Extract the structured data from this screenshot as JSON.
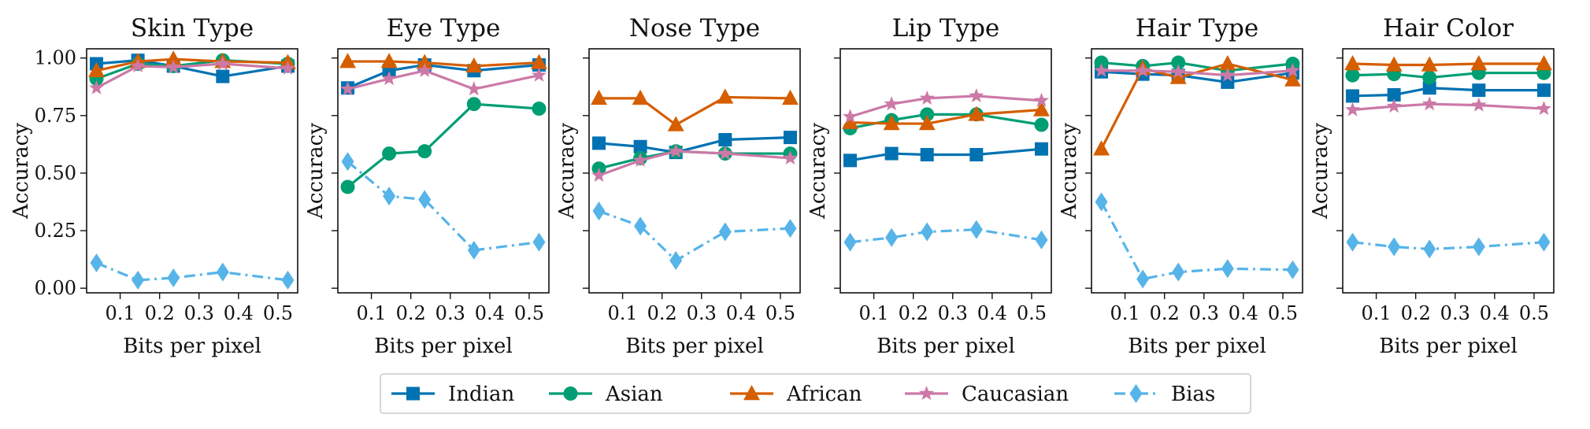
{
  "chart_data": {
    "type": "line",
    "legend": {
      "placement": "bottom-center"
    },
    "series_styles": [
      {
        "name": "Indian",
        "color": "#0072B2",
        "marker": "square",
        "dash": "solid"
      },
      {
        "name": "Asian",
        "color": "#009E73",
        "marker": "circle",
        "dash": "solid"
      },
      {
        "name": "African",
        "color": "#D55E00",
        "marker": "triangle",
        "dash": "solid"
      },
      {
        "name": "Caucasian",
        "color": "#CC79A7",
        "marker": "star",
        "dash": "solid"
      },
      {
        "name": "Bias",
        "color": "#56B4E9",
        "marker": "diamond",
        "dash": "dashdot"
      }
    ],
    "x": [
      0.04,
      0.145,
      0.235,
      0.36,
      0.525
    ],
    "xticks": [
      "0.1",
      "0.2",
      "0.3",
      "0.4",
      "0.5"
    ],
    "xtick_values": [
      0.1,
      0.2,
      0.3,
      0.4,
      0.5
    ],
    "yticks": [
      "0.00",
      "0.25",
      "0.50",
      "0.75",
      "1.00"
    ],
    "ytick_values": [
      0,
      0.25,
      0.5,
      0.75,
      1.0
    ],
    "xlim": [
      0.015,
      0.55
    ],
    "ylim": [
      -0.02,
      1.04
    ],
    "xlabel": "Bits per pixel",
    "ylabel": "Accuracy",
    "panels": [
      {
        "title": "Skin Type",
        "series": [
          {
            "name": "Indian",
            "values": [
              0.975,
              0.99,
              0.965,
              0.92,
              0.965
            ]
          },
          {
            "name": "Asian",
            "values": [
              0.91,
              0.975,
              0.965,
              0.99,
              0.975
            ]
          },
          {
            "name": "African",
            "values": [
              0.945,
              0.985,
              0.995,
              0.985,
              0.98
            ]
          },
          {
            "name": "Caucasian",
            "values": [
              0.87,
              0.965,
              0.96,
              0.975,
              0.955
            ]
          },
          {
            "name": "Bias",
            "values": [
              0.11,
              0.035,
              0.045,
              0.07,
              0.035
            ]
          }
        ]
      },
      {
        "title": "Eye Type",
        "series": [
          {
            "name": "Indian",
            "values": [
              0.87,
              0.945,
              0.97,
              0.945,
              0.97
            ]
          },
          {
            "name": "Asian",
            "values": [
              0.44,
              0.585,
              0.595,
              0.8,
              0.78
            ]
          },
          {
            "name": "African",
            "values": [
              0.985,
              0.985,
              0.98,
              0.965,
              0.98
            ]
          },
          {
            "name": "Caucasian",
            "values": [
              0.865,
              0.91,
              0.945,
              0.865,
              0.925
            ]
          },
          {
            "name": "Bias",
            "values": [
              0.55,
              0.4,
              0.385,
              0.165,
              0.2
            ]
          }
        ]
      },
      {
        "title": "Nose Type",
        "series": [
          {
            "name": "Indian",
            "values": [
              0.63,
              0.615,
              0.59,
              0.645,
              0.655
            ]
          },
          {
            "name": "Asian",
            "values": [
              0.52,
              0.565,
              0.595,
              0.585,
              0.585
            ]
          },
          {
            "name": "African",
            "values": [
              0.825,
              0.825,
              0.71,
              0.83,
              0.825
            ]
          },
          {
            "name": "Caucasian",
            "values": [
              0.49,
              0.555,
              0.595,
              0.585,
              0.565
            ]
          },
          {
            "name": "Bias",
            "values": [
              0.335,
              0.27,
              0.12,
              0.245,
              0.26
            ]
          }
        ]
      },
      {
        "title": "Lip Type",
        "series": [
          {
            "name": "Indian",
            "values": [
              0.555,
              0.585,
              0.58,
              0.58,
              0.605
            ]
          },
          {
            "name": "Asian",
            "values": [
              0.695,
              0.73,
              0.755,
              0.755,
              0.71
            ]
          },
          {
            "name": "African",
            "values": [
              0.72,
              0.715,
              0.715,
              0.755,
              0.775
            ]
          },
          {
            "name": "Caucasian",
            "values": [
              0.745,
              0.8,
              0.825,
              0.835,
              0.815
            ]
          },
          {
            "name": "Bias",
            "values": [
              0.2,
              0.22,
              0.245,
              0.255,
              0.21
            ]
          }
        ]
      },
      {
        "title": "Hair Type",
        "series": [
          {
            "name": "Indian",
            "values": [
              0.94,
              0.93,
              0.925,
              0.895,
              0.935
            ]
          },
          {
            "name": "Asian",
            "values": [
              0.98,
              0.965,
              0.98,
              0.945,
              0.975
            ]
          },
          {
            "name": "African",
            "values": [
              0.605,
              0.955,
              0.915,
              0.975,
              0.905
            ]
          },
          {
            "name": "Caucasian",
            "values": [
              0.945,
              0.945,
              0.94,
              0.925,
              0.945
            ]
          },
          {
            "name": "Bias",
            "values": [
              0.375,
              0.04,
              0.07,
              0.085,
              0.08
            ]
          }
        ]
      },
      {
        "title": "Hair Color",
        "series": [
          {
            "name": "Indian",
            "values": [
              0.835,
              0.84,
              0.87,
              0.86,
              0.86
            ]
          },
          {
            "name": "Asian",
            "values": [
              0.925,
              0.93,
              0.915,
              0.935,
              0.935
            ]
          },
          {
            "name": "African",
            "values": [
              0.975,
              0.97,
              0.97,
              0.975,
              0.975
            ]
          },
          {
            "name": "Caucasian",
            "values": [
              0.775,
              0.79,
              0.8,
              0.795,
              0.78
            ]
          },
          {
            "name": "Bias",
            "values": [
              0.2,
              0.18,
              0.17,
              0.18,
              0.2
            ]
          }
        ]
      }
    ]
  }
}
